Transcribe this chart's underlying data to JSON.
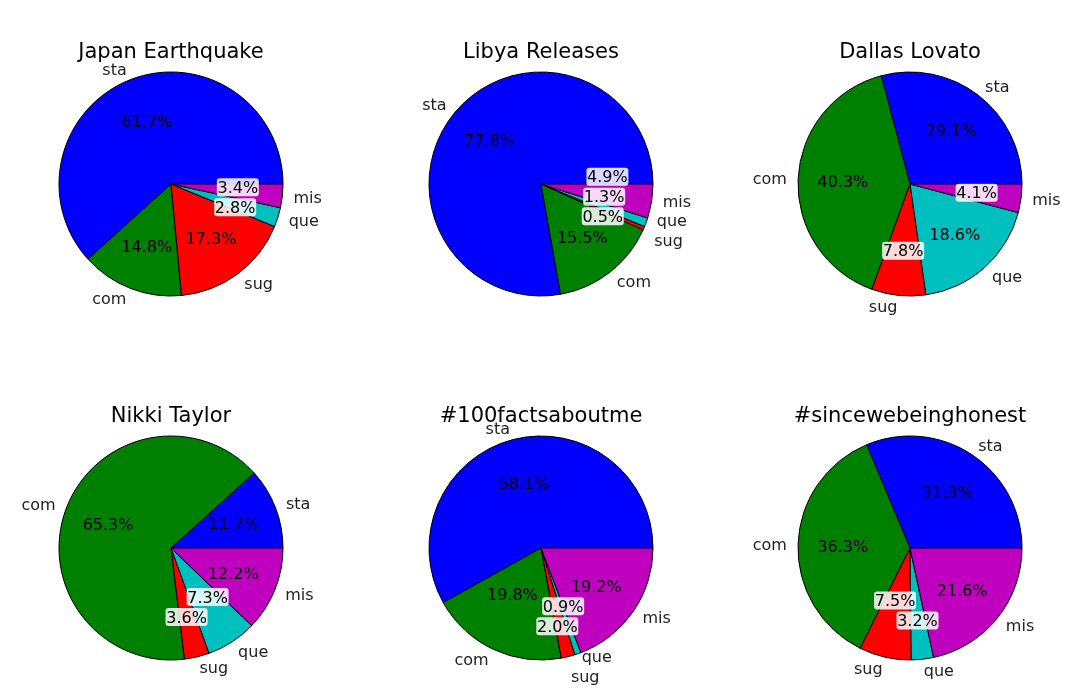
{
  "chart_data": [
    {
      "type": "pie",
      "title": "Japan Earthquake",
      "categories": [
        "sta",
        "com",
        "sug",
        "que",
        "mis"
      ],
      "values": [
        61.7,
        14.8,
        17.3,
        2.8,
        3.4
      ],
      "value_labels": [
        "61.7%",
        "14.8%",
        "17.3%",
        "2.8%",
        "3.4%"
      ],
      "colors": [
        "#0000ff",
        "#008000",
        "#ff0000",
        "#00bfbf",
        "#bf00bf"
      ]
    },
    {
      "type": "pie",
      "title": "Libya Releases",
      "categories": [
        "sta",
        "com",
        "sug",
        "que",
        "mis"
      ],
      "values": [
        77.8,
        15.5,
        0.5,
        1.3,
        4.9
      ],
      "value_labels": [
        "77.8%",
        "15.5%",
        "0.5%",
        "1.3%",
        "4.9%"
      ],
      "colors": [
        "#0000ff",
        "#008000",
        "#ff0000",
        "#00bfbf",
        "#bf00bf"
      ]
    },
    {
      "type": "pie",
      "title": "Dallas Lovato",
      "categories": [
        "sta",
        "com",
        "sug",
        "que",
        "mis"
      ],
      "values": [
        29.1,
        40.3,
        7.8,
        18.6,
        4.1
      ],
      "value_labels": [
        "29.1%",
        "40.3%",
        "7.8%",
        "18.6%",
        "4.1%"
      ],
      "colors": [
        "#0000ff",
        "#008000",
        "#ff0000",
        "#00bfbf",
        "#bf00bf"
      ]
    },
    {
      "type": "pie",
      "title": "Nikki Taylor",
      "categories": [
        "sta",
        "com",
        "sug",
        "que",
        "mis"
      ],
      "values": [
        11.7,
        65.3,
        3.6,
        7.3,
        12.2
      ],
      "value_labels": [
        "11.7%",
        "65.3%",
        "3.6%",
        "7.3%",
        "12.2%"
      ],
      "colors": [
        "#0000ff",
        "#008000",
        "#ff0000",
        "#00bfbf",
        "#bf00bf"
      ]
    },
    {
      "type": "pie",
      "title": "#100factsaboutme",
      "categories": [
        "sta",
        "com",
        "sug",
        "que",
        "mis"
      ],
      "values": [
        58.1,
        19.8,
        2.0,
        0.9,
        19.2
      ],
      "value_labels": [
        "58.1%",
        "19.8%",
        "2.0%",
        "0.9%",
        "19.2%"
      ],
      "colors": [
        "#0000ff",
        "#008000",
        "#ff0000",
        "#00bfbf",
        "#bf00bf"
      ]
    },
    {
      "type": "pie",
      "title": "#sincewebeinghonest",
      "categories": [
        "sta",
        "com",
        "sug",
        "que",
        "mis"
      ],
      "values": [
        31.3,
        36.3,
        7.5,
        3.2,
        21.6
      ],
      "value_labels": [
        "31.3%",
        "36.3%",
        "7.5%",
        "3.2%",
        "21.6%"
      ],
      "colors": [
        "#0000ff",
        "#008000",
        "#ff0000",
        "#00bfbf",
        "#bf00bf"
      ]
    }
  ]
}
